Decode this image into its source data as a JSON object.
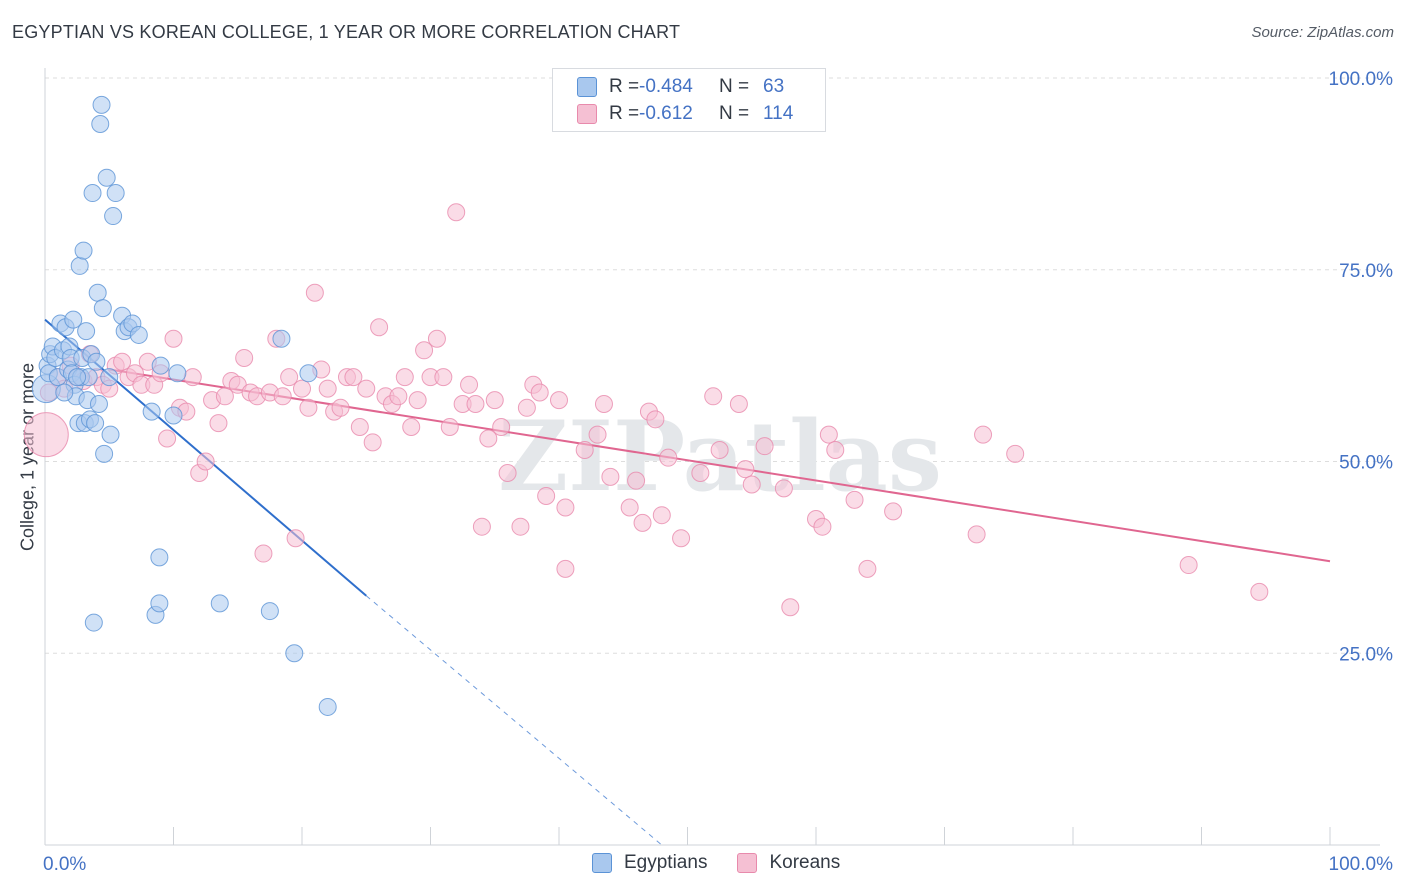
{
  "title": "EGYPTIAN VS KOREAN COLLEGE, 1 YEAR OR MORE CORRELATION CHART",
  "source": "Source: ZipAtlas.com",
  "watermark": "ZIPatlas",
  "legend": {
    "rows": [
      {
        "r_label": "R =",
        "r_value": "-0.484",
        "n_label": "N =",
        "n_value": "63"
      },
      {
        "r_label": "R =",
        "r_value": "-0.612",
        "n_label": "N =",
        "n_value": "114"
      }
    ]
  },
  "bottom_legend": [
    "Egyptians",
    "Koreans"
  ],
  "colors": {
    "egyptians_fill": "#a9c8ee",
    "egyptians_stroke": "#5b93d6",
    "egyptians_line": "#2f6fcc",
    "koreans_fill": "#f5c0d3",
    "koreans_stroke": "#e88aac",
    "koreans_line": "#e06690",
    "tick_label": "#4472c4",
    "grid": "#dddddd"
  },
  "chart_data": {
    "type": "scatter",
    "title": "EGYPTIAN VS KOREAN COLLEGE, 1 YEAR OR MORE CORRELATION CHART",
    "xlabel": "",
    "ylabel": "College, 1 year or more",
    "xlim": [
      0,
      100
    ],
    "ylim": [
      0,
      100
    ],
    "x_tick_labels": [
      "0.0%",
      "100.0%"
    ],
    "y_tick_labels": [
      "25.0%",
      "50.0%",
      "75.0%",
      "100.0%"
    ],
    "y_ticks": [
      25,
      50,
      75,
      100
    ],
    "grid": true,
    "legend_position": "top-center",
    "series": [
      {
        "name": "Egyptians",
        "r": -0.484,
        "n": 63,
        "points": [
          [
            0.1,
            59.5
          ],
          [
            0.2,
            62.5
          ],
          [
            0.3,
            61.5
          ],
          [
            0.4,
            64.0
          ],
          [
            0.6,
            65.0
          ],
          [
            0.8,
            63.5
          ],
          [
            1.0,
            61.0
          ],
          [
            1.2,
            68.0
          ],
          [
            1.4,
            64.5
          ],
          [
            1.6,
            67.5
          ],
          [
            1.8,
            62.0
          ],
          [
            1.9,
            65.0
          ],
          [
            2.0,
            63.5
          ],
          [
            2.1,
            61.5
          ],
          [
            2.2,
            68.5
          ],
          [
            2.3,
            60.0
          ],
          [
            2.4,
            58.5
          ],
          [
            2.6,
            55.0
          ],
          [
            2.7,
            75.5
          ],
          [
            2.8,
            61.0
          ],
          [
            2.9,
            63.5
          ],
          [
            3.0,
            77.5
          ],
          [
            3.1,
            55.0
          ],
          [
            3.2,
            67.0
          ],
          [
            3.3,
            58.0
          ],
          [
            3.4,
            61.0
          ],
          [
            3.5,
            55.5
          ],
          [
            3.6,
            64.0
          ],
          [
            3.7,
            85.0
          ],
          [
            3.8,
            29.0
          ],
          [
            3.9,
            55.0
          ],
          [
            4.0,
            63.0
          ],
          [
            4.1,
            72.0
          ],
          [
            4.2,
            57.5
          ],
          [
            4.3,
            94.0
          ],
          [
            4.4,
            96.5
          ],
          [
            4.5,
            70.0
          ],
          [
            4.6,
            51.0
          ],
          [
            4.8,
            87.0
          ],
          [
            5.0,
            61.0
          ],
          [
            5.1,
            53.5
          ],
          [
            5.3,
            82.0
          ],
          [
            5.5,
            85.0
          ],
          [
            6.0,
            69.0
          ],
          [
            6.2,
            67.0
          ],
          [
            6.5,
            67.5
          ],
          [
            6.8,
            68.0
          ],
          [
            7.3,
            66.5
          ],
          [
            8.3,
            56.5
          ],
          [
            8.6,
            30.0
          ],
          [
            8.9,
            31.5
          ],
          [
            8.9,
            37.5
          ],
          [
            9.0,
            62.5
          ],
          [
            10.0,
            56.0
          ],
          [
            10.3,
            61.5
          ],
          [
            13.6,
            31.5
          ],
          [
            17.5,
            30.5
          ],
          [
            18.4,
            66.0
          ],
          [
            19.4,
            25.0
          ],
          [
            20.5,
            61.5
          ],
          [
            22.0,
            18.0
          ],
          [
            1.5,
            59.0
          ],
          [
            2.5,
            61.0
          ]
        ],
        "trend": {
          "x": [
            0,
            25
          ],
          "y": [
            68.5,
            32.5
          ],
          "dashed_to": {
            "x": 48,
            "y": 0
          }
        }
      },
      {
        "name": "Koreans",
        "r": -0.612,
        "n": 114,
        "points": [
          [
            0.1,
            53.5
          ],
          [
            0.3,
            59.0
          ],
          [
            1.0,
            61.0
          ],
          [
            1.5,
            59.5
          ],
          [
            2.0,
            62.5
          ],
          [
            2.5,
            61.0
          ],
          [
            3.0,
            60.5
          ],
          [
            3.5,
            64.0
          ],
          [
            4.0,
            61.0
          ],
          [
            4.5,
            60.0
          ],
          [
            5.0,
            59.5
          ],
          [
            5.5,
            62.5
          ],
          [
            6.0,
            63.0
          ],
          [
            6.5,
            61.0
          ],
          [
            7.0,
            61.5
          ],
          [
            7.5,
            60.0
          ],
          [
            8.0,
            63.0
          ],
          [
            8.5,
            60.0
          ],
          [
            9.0,
            61.5
          ],
          [
            9.5,
            53.0
          ],
          [
            10.0,
            66.0
          ],
          [
            10.5,
            57.0
          ],
          [
            11.0,
            56.5
          ],
          [
            11.5,
            61.0
          ],
          [
            12.0,
            48.5
          ],
          [
            12.5,
            50.0
          ],
          [
            13.0,
            58.0
          ],
          [
            13.5,
            55.0
          ],
          [
            14.0,
            58.5
          ],
          [
            14.5,
            60.5
          ],
          [
            15.0,
            60.0
          ],
          [
            15.5,
            63.5
          ],
          [
            16.0,
            59.0
          ],
          [
            16.5,
            58.5
          ],
          [
            17.0,
            38.0
          ],
          [
            17.5,
            59.0
          ],
          [
            18.0,
            66.0
          ],
          [
            18.5,
            58.5
          ],
          [
            19.0,
            61.0
          ],
          [
            19.5,
            40.0
          ],
          [
            20.0,
            59.5
          ],
          [
            20.5,
            57.0
          ],
          [
            21.0,
            72.0
          ],
          [
            21.5,
            62.0
          ],
          [
            22.0,
            59.5
          ],
          [
            22.5,
            56.5
          ],
          [
            23.0,
            57.0
          ],
          [
            23.5,
            61.0
          ],
          [
            24.0,
            61.0
          ],
          [
            24.5,
            54.5
          ],
          [
            25.0,
            59.5
          ],
          [
            25.5,
            52.5
          ],
          [
            26.0,
            67.5
          ],
          [
            26.5,
            58.5
          ],
          [
            27.0,
            57.5
          ],
          [
            27.5,
            58.5
          ],
          [
            28.0,
            61.0
          ],
          [
            28.5,
            54.5
          ],
          [
            29.0,
            58.0
          ],
          [
            29.5,
            64.5
          ],
          [
            30.0,
            61.0
          ],
          [
            30.5,
            66.0
          ],
          [
            31.0,
            61.0
          ],
          [
            31.5,
            54.5
          ],
          [
            32.0,
            82.5
          ],
          [
            32.5,
            57.5
          ],
          [
            33.0,
            60.0
          ],
          [
            33.5,
            57.5
          ],
          [
            34.0,
            41.5
          ],
          [
            34.5,
            53.0
          ],
          [
            35.0,
            58.0
          ],
          [
            35.5,
            54.5
          ],
          [
            36.0,
            48.5
          ],
          [
            37.0,
            41.5
          ],
          [
            37.5,
            57.0
          ],
          [
            38.0,
            60.0
          ],
          [
            38.5,
            59.0
          ],
          [
            39.0,
            45.5
          ],
          [
            40.0,
            58.0
          ],
          [
            40.5,
            44.0
          ],
          [
            40.5,
            36.0
          ],
          [
            42.0,
            51.5
          ],
          [
            43.0,
            53.5
          ],
          [
            43.5,
            57.5
          ],
          [
            44.0,
            48.0
          ],
          [
            45.5,
            44.0
          ],
          [
            46.0,
            47.5
          ],
          [
            46.5,
            42.0
          ],
          [
            47.0,
            56.5
          ],
          [
            47.5,
            55.5
          ],
          [
            48.0,
            43.0
          ],
          [
            48.5,
            50.5
          ],
          [
            49.5,
            40.0
          ],
          [
            51.0,
            48.5
          ],
          [
            52.0,
            58.5
          ],
          [
            52.5,
            51.5
          ],
          [
            54.0,
            57.5
          ],
          [
            54.5,
            49.0
          ],
          [
            55.0,
            47.0
          ],
          [
            56.0,
            52.0
          ],
          [
            57.5,
            46.5
          ],
          [
            58.0,
            31.0
          ],
          [
            60.0,
            42.5
          ],
          [
            60.5,
            41.5
          ],
          [
            61.0,
            53.5
          ],
          [
            61.5,
            51.5
          ],
          [
            63.0,
            45.0
          ],
          [
            64.0,
            36.0
          ],
          [
            66.0,
            43.5
          ],
          [
            72.5,
            40.5
          ],
          [
            73.0,
            53.5
          ],
          [
            75.5,
            51.0
          ],
          [
            89.0,
            36.5
          ],
          [
            94.5,
            33.0
          ]
        ],
        "trend": {
          "x": [
            5,
            100
          ],
          "y": [
            62.0,
            37.0
          ]
        }
      }
    ]
  }
}
